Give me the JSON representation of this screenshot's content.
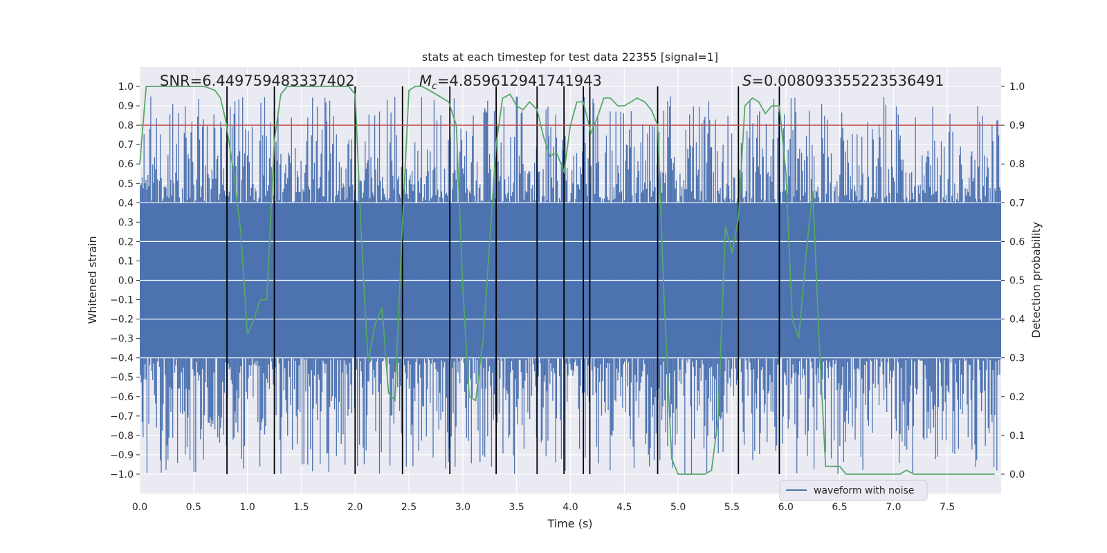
{
  "chart_data": {
    "type": "line",
    "title": "stats at each timestep for test data 22355 [signal=1]",
    "xlabel": "Time (s)",
    "ylabel": "Whitened strain",
    "ylabel_right": "Detection probability",
    "xlim": [
      0,
      8
    ],
    "ylim": [
      -1.1,
      1.1
    ],
    "ylim_right": [
      -0.05,
      1.05
    ],
    "xticks": [
      0.0,
      0.5,
      1.0,
      1.5,
      2.0,
      2.5,
      3.0,
      3.5,
      4.0,
      4.5,
      5.0,
      5.5,
      6.0,
      6.5,
      7.0,
      7.5
    ],
    "xtick_labels": [
      "0.0",
      "0.5",
      "1.0",
      "1.5",
      "2.0",
      "2.5",
      "3.0",
      "3.5",
      "4.0",
      "4.5",
      "5.0",
      "5.5",
      "6.0",
      "6.5",
      "7.0",
      "7.5"
    ],
    "yticks": [
      -1.0,
      -0.9,
      -0.8,
      -0.7,
      -0.6,
      -0.5,
      -0.4,
      -0.3,
      -0.2,
      -0.1,
      0.0,
      0.1,
      0.2,
      0.3,
      0.4,
      0.5,
      0.6,
      0.7,
      0.8,
      0.9,
      1.0
    ],
    "ytick_labels": [
      "−1.0",
      "−0.9",
      "−0.8",
      "−0.7",
      "−0.6",
      "−0.5",
      "−0.4",
      "−0.3",
      "−0.2",
      "−0.1",
      "0.0",
      "0.1",
      "0.2",
      "0.3",
      "0.4",
      "0.5",
      "0.6",
      "0.7",
      "0.8",
      "0.9",
      "1.0"
    ],
    "yticks_right": [
      0.0,
      0.1,
      0.2,
      0.3,
      0.4,
      0.5,
      0.6,
      0.7,
      0.8,
      0.9,
      1.0
    ],
    "ytick_labels_right": [
      "0.0",
      "0.1",
      "0.2",
      "0.3",
      "0.4",
      "0.5",
      "0.6",
      "0.7",
      "0.8",
      "0.9",
      "1.0"
    ],
    "grid": true,
    "legend": {
      "location": "lower-right",
      "entries": [
        "waveform with noise"
      ]
    },
    "annotations": {
      "snr": "SNR=6.449759483337402",
      "mc_symbol": "M",
      "mc_subscript": "c",
      "mc_value": "=4.859612941741943",
      "s_symbol": "S",
      "s_value": "=0.008093355223536491"
    },
    "threshold": {
      "axis": "right",
      "value": 0.9,
      "color": "#c44e52"
    },
    "vlines": {
      "x": [
        0.81,
        1.25,
        2.0,
        2.44,
        2.88,
        3.31,
        3.69,
        3.94,
        4.12,
        4.18,
        4.81,
        5.56,
        5.94
      ],
      "ymin": -1.0,
      "ymax": 1.0,
      "color": "#000000"
    },
    "waveform": {
      "name": "waveform with noise",
      "color": "#4c72b0",
      "samples": 900,
      "core_amplitude": 0.4,
      "max_abs": 1.0
    },
    "series": [
      {
        "name": "Detection probability",
        "axis": "right",
        "color": "#55a868",
        "x": [
          0.0,
          0.06,
          0.12,
          0.2,
          0.3,
          0.4,
          0.5,
          0.6,
          0.7,
          0.75,
          0.8,
          0.87,
          0.94,
          1.0,
          1.06,
          1.12,
          1.18,
          1.25,
          1.31,
          1.37,
          1.44,
          1.5,
          1.56,
          1.62,
          1.69,
          1.75,
          1.81,
          1.87,
          1.94,
          2.0,
          2.06,
          2.12,
          2.19,
          2.25,
          2.31,
          2.37,
          2.44,
          2.5,
          2.56,
          2.62,
          2.69,
          2.75,
          2.81,
          2.87,
          2.94,
          3.0,
          3.06,
          3.12,
          3.19,
          3.25,
          3.31,
          3.37,
          3.44,
          3.5,
          3.56,
          3.62,
          3.69,
          3.75,
          3.81,
          3.87,
          3.94,
          4.0,
          4.06,
          4.12,
          4.19,
          4.25,
          4.31,
          4.37,
          4.44,
          4.5,
          4.56,
          4.62,
          4.69,
          4.75,
          4.81,
          4.87,
          4.94,
          5.0,
          5.06,
          5.12,
          5.19,
          5.25,
          5.31,
          5.37,
          5.44,
          5.5,
          5.56,
          5.62,
          5.69,
          5.75,
          5.81,
          5.87,
          5.94,
          6.0,
          6.06,
          6.12,
          6.19,
          6.25,
          6.31,
          6.37,
          6.44,
          6.5,
          6.56,
          6.62,
          6.69,
          6.75,
          6.81,
          6.87,
          6.94,
          7.0,
          7.06,
          7.12,
          7.19,
          7.25,
          7.31,
          7.37,
          7.44,
          7.5,
          7.56,
          7.62,
          7.69,
          7.75,
          7.81,
          7.87,
          7.94
        ],
        "values": [
          0.8,
          1.0,
          1.0,
          1.0,
          1.0,
          1.0,
          1.0,
          1.0,
          0.99,
          0.97,
          0.91,
          0.78,
          0.62,
          0.36,
          0.4,
          0.45,
          0.45,
          0.86,
          0.98,
          1.0,
          1.0,
          1.0,
          1.0,
          1.0,
          1.0,
          1.0,
          1.0,
          1.0,
          1.0,
          0.98,
          0.6,
          0.29,
          0.39,
          0.43,
          0.21,
          0.19,
          0.65,
          0.99,
          1.0,
          1.0,
          0.99,
          0.98,
          0.97,
          0.96,
          0.9,
          0.48,
          0.2,
          0.19,
          0.35,
          0.6,
          0.85,
          0.97,
          0.98,
          0.95,
          0.94,
          0.96,
          0.94,
          0.87,
          0.82,
          0.83,
          0.78,
          0.9,
          0.96,
          0.96,
          0.88,
          0.92,
          0.97,
          0.97,
          0.95,
          0.95,
          0.96,
          0.97,
          0.96,
          0.94,
          0.9,
          0.45,
          0.04,
          0.0,
          0.0,
          0.0,
          0.0,
          0.0,
          0.01,
          0.14,
          0.64,
          0.57,
          0.66,
          0.95,
          0.97,
          0.96,
          0.93,
          0.95,
          0.95,
          0.78,
          0.4,
          0.35,
          0.57,
          0.73,
          0.34,
          0.02,
          0.02,
          0.02,
          0.0,
          0.0,
          0.0,
          0.0,
          0.0,
          0.0,
          0.0,
          0.0,
          0.0,
          0.01,
          0.0,
          0.0,
          0.0,
          0.0,
          0.0,
          0.0,
          0.0,
          0.0,
          0.0,
          0.0,
          0.0,
          0.0,
          0.0
        ]
      }
    ]
  }
}
